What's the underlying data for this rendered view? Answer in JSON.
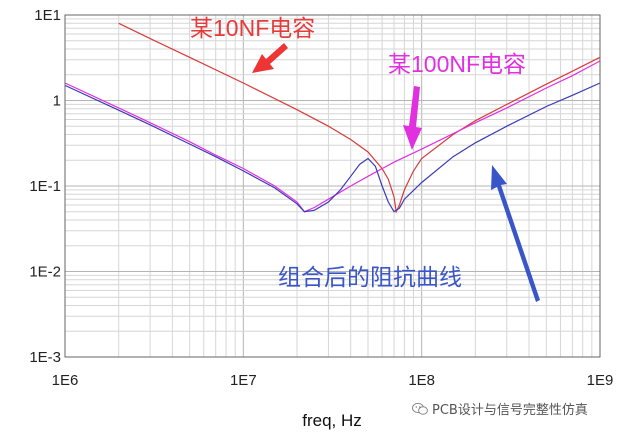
{
  "chart_data": {
    "type": "line",
    "xlabel": "freq, Hz",
    "ylabel": "",
    "xscale": "log",
    "yscale": "log",
    "xlim": [
      1000000,
      1000000000
    ],
    "ylim": [
      0.001,
      10
    ],
    "x_ticks": [
      "1E6",
      "1E7",
      "1E8",
      "1E9"
    ],
    "y_ticks": [
      "1E1",
      "1",
      "1E-1",
      "1E-2",
      "1E-3"
    ],
    "grid": true,
    "series": [
      {
        "name": "某10NF电容",
        "color": "#d93a3a",
        "x": [
          2000000,
          3000000,
          5000000,
          10000000,
          20000000,
          30000000,
          40000000,
          50000000,
          60000000,
          65000000,
          70000000,
          72000000,
          75000000,
          80000000,
          90000000,
          100000000,
          150000000,
          200000000,
          300000000,
          500000000,
          700000000,
          1000000000
        ],
        "y": [
          8.0,
          5.3,
          3.2,
          1.6,
          0.78,
          0.5,
          0.35,
          0.25,
          0.16,
          0.12,
          0.075,
          0.05,
          0.06,
          0.09,
          0.15,
          0.21,
          0.4,
          0.58,
          0.9,
          1.55,
          2.2,
          3.2
        ]
      },
      {
        "name": "某100NF电容",
        "color": "#e030e0",
        "x": [
          1000000,
          2000000,
          3000000,
          5000000,
          7000000,
          10000000,
          15000000,
          20000000,
          22000000,
          25000000,
          30000000,
          40000000,
          50000000,
          70000000,
          100000000,
          200000000,
          300000000,
          500000000,
          700000000,
          1000000000
        ],
        "y": [
          1.6,
          0.82,
          0.55,
          0.33,
          0.23,
          0.16,
          0.1,
          0.065,
          0.05,
          0.056,
          0.07,
          0.1,
          0.13,
          0.19,
          0.27,
          0.55,
          0.82,
          1.4,
          1.95,
          2.9
        ]
      },
      {
        "name": "组合后的阻抗曲线",
        "color": "#3a3ab8",
        "x": [
          1000000,
          2000000,
          3000000,
          5000000,
          7000000,
          10000000,
          15000000,
          20000000,
          22000000,
          25000000,
          30000000,
          35000000,
          40000000,
          45000000,
          50000000,
          55000000,
          60000000,
          65000000,
          70000000,
          75000000,
          80000000,
          100000000,
          150000000,
          200000000,
          300000000,
          500000000,
          700000000,
          1000000000
        ],
        "y": [
          1.5,
          0.77,
          0.52,
          0.31,
          0.22,
          0.15,
          0.095,
          0.062,
          0.05,
          0.052,
          0.065,
          0.09,
          0.13,
          0.18,
          0.21,
          0.17,
          0.1,
          0.065,
          0.05,
          0.055,
          0.07,
          0.11,
          0.22,
          0.32,
          0.5,
          0.85,
          1.15,
          1.6
        ]
      }
    ],
    "annotations": [
      {
        "text": "某10NF电容",
        "color": "#e53b3b"
      },
      {
        "text": "某100NF电容",
        "color": "#e030e0"
      },
      {
        "text": "组合后的阻抗曲线",
        "color": "#3a55c8"
      }
    ]
  },
  "watermark": {
    "text": "PCB设计与信号完整性仿真"
  }
}
